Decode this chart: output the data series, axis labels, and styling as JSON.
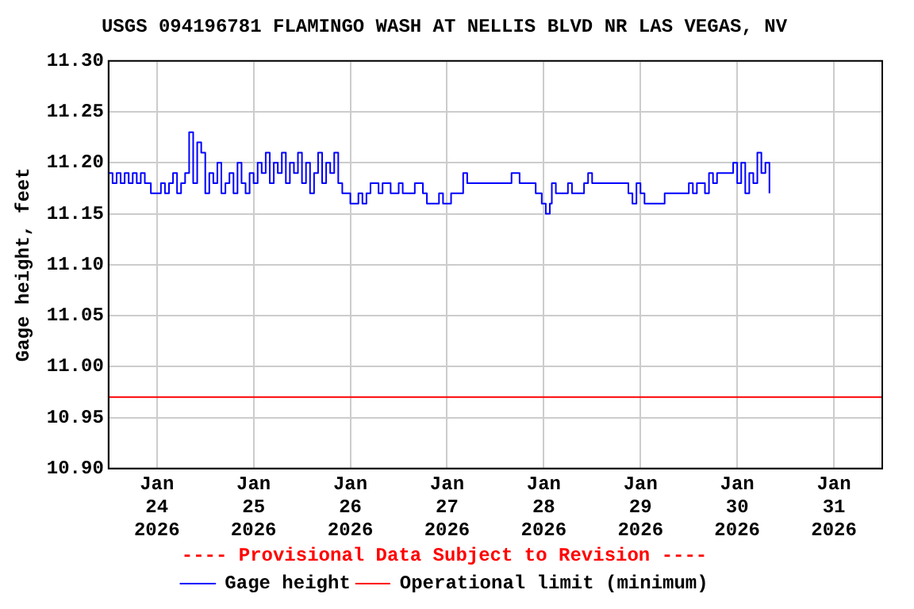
{
  "chart_data": {
    "type": "step",
    "title": "USGS 094196781 FLAMINGO WASH AT NELLIS BLVD NR LAS VEGAS, NV",
    "ylabel": "Gage height, feet",
    "x": [
      "2026-01-23T12:00",
      "2026-01-23T13:00",
      "2026-01-23T14:00",
      "2026-01-23T15:00",
      "2026-01-23T16:00",
      "2026-01-23T17:00",
      "2026-01-23T18:00",
      "2026-01-23T19:00",
      "2026-01-23T20:00",
      "2026-01-23T21:00",
      "2026-01-23T22:30",
      "2026-01-24T01:00",
      "2026-01-24T02:00",
      "2026-01-24T03:00",
      "2026-01-24T04:00",
      "2026-01-24T05:00",
      "2026-01-24T06:00",
      "2026-01-24T07:00",
      "2026-01-24T08:00",
      "2026-01-24T09:00",
      "2026-01-24T10:00",
      "2026-01-24T11:00",
      "2026-01-24T12:00",
      "2026-01-24T13:00",
      "2026-01-24T14:00",
      "2026-01-24T15:00",
      "2026-01-24T16:00",
      "2026-01-24T17:00",
      "2026-01-24T18:00",
      "2026-01-24T19:00",
      "2026-01-24T20:00",
      "2026-01-24T21:00",
      "2026-01-24T22:00",
      "2026-01-24T23:00",
      "2026-01-25T00:00",
      "2026-01-25T01:00",
      "2026-01-25T02:00",
      "2026-01-25T03:00",
      "2026-01-25T04:00",
      "2026-01-25T05:00",
      "2026-01-25T06:00",
      "2026-01-25T07:00",
      "2026-01-25T08:00",
      "2026-01-25T09:00",
      "2026-01-25T10:00",
      "2026-01-25T11:00",
      "2026-01-25T12:00",
      "2026-01-25T13:00",
      "2026-01-25T14:00",
      "2026-01-25T15:00",
      "2026-01-25T16:00",
      "2026-01-25T17:00",
      "2026-01-25T18:00",
      "2026-01-25T19:00",
      "2026-01-25T20:00",
      "2026-01-25T21:00",
      "2026-01-25T22:00",
      "2026-01-26T00:00",
      "2026-01-26T02:00",
      "2026-01-26T03:00",
      "2026-01-26T04:00",
      "2026-01-26T05:00",
      "2026-01-26T07:00",
      "2026-01-26T08:00",
      "2026-01-26T10:00",
      "2026-01-26T12:00",
      "2026-01-26T13:00",
      "2026-01-26T16:00",
      "2026-01-26T18:00",
      "2026-01-26T19:00",
      "2026-01-26T22:00",
      "2026-01-26T23:00",
      "2026-01-27T01:00",
      "2026-01-27T04:00",
      "2026-01-27T05:00",
      "2026-01-27T16:00",
      "2026-01-27T18:00",
      "2026-01-27T22:00",
      "2026-01-27T23:30",
      "2026-01-28T00:30",
      "2026-01-28T01:30",
      "2026-01-28T02:00",
      "2026-01-28T03:00",
      "2026-01-28T06:00",
      "2026-01-28T07:00",
      "2026-01-28T10:00",
      "2026-01-28T11:00",
      "2026-01-28T12:00",
      "2026-01-28T21:00",
      "2026-01-28T22:00",
      "2026-01-28T23:00",
      "2026-01-29T00:00",
      "2026-01-29T01:00",
      "2026-01-29T06:00",
      "2026-01-29T12:00",
      "2026-01-29T13:00",
      "2026-01-29T14:00",
      "2026-01-29T16:00",
      "2026-01-29T17:00",
      "2026-01-29T18:00",
      "2026-01-29T19:00",
      "2026-01-29T23:00",
      "2026-01-30T00:00",
      "2026-01-30T01:00",
      "2026-01-30T02:00",
      "2026-01-30T03:00",
      "2026-01-30T04:00",
      "2026-01-30T05:00",
      "2026-01-30T06:00",
      "2026-01-30T07:00",
      "2026-01-30T08:00"
    ],
    "series": [
      {
        "name": "Gage height",
        "color": "#0000ff",
        "values": [
          11.19,
          11.18,
          11.19,
          11.18,
          11.19,
          11.18,
          11.19,
          11.18,
          11.19,
          11.18,
          11.17,
          11.18,
          11.17,
          11.18,
          11.19,
          11.17,
          11.18,
          11.19,
          11.23,
          11.18,
          11.22,
          11.21,
          11.17,
          11.19,
          11.18,
          11.2,
          11.17,
          11.18,
          11.19,
          11.17,
          11.2,
          11.18,
          11.17,
          11.19,
          11.18,
          11.2,
          11.19,
          11.21,
          11.18,
          11.2,
          11.19,
          11.21,
          11.18,
          11.2,
          11.19,
          11.21,
          11.18,
          11.2,
          11.17,
          11.19,
          11.21,
          11.18,
          11.2,
          11.19,
          11.21,
          11.18,
          11.17,
          11.16,
          11.17,
          11.16,
          11.17,
          11.18,
          11.17,
          11.18,
          11.17,
          11.18,
          11.17,
          11.18,
          11.17,
          11.16,
          11.17,
          11.16,
          11.17,
          11.19,
          11.18,
          11.19,
          11.18,
          11.17,
          11.16,
          11.15,
          11.16,
          11.18,
          11.17,
          11.18,
          11.17,
          11.18,
          11.19,
          11.18,
          11.17,
          11.16,
          11.18,
          11.17,
          11.16,
          11.17,
          11.18,
          11.17,
          11.18,
          11.17,
          11.19,
          11.18,
          11.19,
          11.2,
          11.18,
          11.2,
          11.17,
          11.19,
          11.18,
          11.21,
          11.19,
          11.2,
          11.17
        ]
      }
    ],
    "ref_lines": [
      {
        "axis": "y",
        "value": 10.97,
        "label": "Operational limit (minimum)",
        "color": "#ff0000"
      }
    ],
    "annotations": [
      "---- Provisional Data Subject to Revision ----"
    ],
    "xlim": [
      "2026-01-23T12:00",
      "2026-01-31T12:00"
    ],
    "xticks": [
      {
        "value": "2026-01-24",
        "label": "Jan 24 2026"
      },
      {
        "value": "2026-01-25",
        "label": "Jan 25 2026"
      },
      {
        "value": "2026-01-26",
        "label": "Jan 26 2026"
      },
      {
        "value": "2026-01-27",
        "label": "Jan 27 2026"
      },
      {
        "value": "2026-01-28",
        "label": "Jan 28 2026"
      },
      {
        "value": "2026-01-29",
        "label": "Jan 29 2026"
      },
      {
        "value": "2026-01-30",
        "label": "Jan 30 2026"
      },
      {
        "value": "2026-01-31",
        "label": "Jan 31 2026"
      }
    ],
    "ylim": [
      10.9,
      11.3
    ],
    "yticks": [
      {
        "value": 10.9,
        "label": "10.90"
      },
      {
        "value": 10.95,
        "label": "10.95"
      },
      {
        "value": 11.0,
        "label": "11.00"
      },
      {
        "value": 11.05,
        "label": "11.05"
      },
      {
        "value": 11.1,
        "label": "11.10"
      },
      {
        "value": 11.15,
        "label": "11.15"
      },
      {
        "value": 11.2,
        "label": "11.20"
      },
      {
        "value": 11.25,
        "label": "11.25"
      },
      {
        "value": 11.3,
        "label": "11.30"
      }
    ],
    "grid": true,
    "legend": "bottom",
    "marker": "none",
    "line_style": "solid"
  }
}
